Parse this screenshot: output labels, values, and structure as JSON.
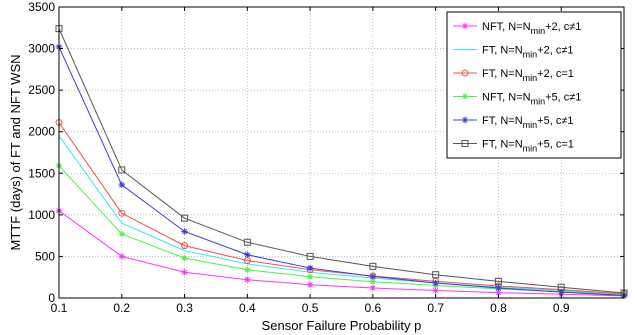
{
  "chart_data": {
    "type": "line",
    "xlabel": "Sensor Failure Probability p",
    "ylabel": "MTTF (days) of FT and NFT WSN",
    "xlim": [
      0.1,
      1.0
    ],
    "ylim": [
      0,
      3500
    ],
    "grid": true,
    "legend_position": "top-right",
    "x": [
      0.1,
      0.2,
      0.3,
      0.4,
      0.5,
      0.6,
      0.7,
      0.8,
      0.9,
      1.0
    ],
    "x_ticks": [
      "0.1",
      "0.2",
      "0.3",
      "0.4",
      "0.5",
      "0.6",
      "0.7",
      "0.8",
      "0.9"
    ],
    "y_ticks": [
      "0",
      "500",
      "1000",
      "1500",
      "2000",
      "2500",
      "3000",
      "3500"
    ],
    "series": [
      {
        "name": "NFT, N=Nmin+2, c≠1",
        "label_parts": [
          "NFT, N=N",
          "min",
          "+2, c≠1"
        ],
        "color": "#ff33ff",
        "marker": "star",
        "values": [
          1050,
          500,
          310,
          220,
          160,
          120,
          90,
          65,
          45,
          25
        ]
      },
      {
        "name": "FT, N=Nmin+2, c≠1",
        "label_parts": [
          "FT, N=N",
          "min",
          "+2, c≠1"
        ],
        "color": "#33e6f2",
        "marker": "none",
        "values": [
          1950,
          900,
          570,
          410,
          310,
          240,
          180,
          130,
          90,
          45
        ]
      },
      {
        "name": "FT, N=Nmin+2, c=1",
        "label_parts": [
          "FT, N=N",
          "min",
          "+2, c=1"
        ],
        "color": "#f0504c",
        "marker": "circle",
        "values": [
          2110,
          1020,
          630,
          450,
          340,
          265,
          200,
          145,
          100,
          50
        ]
      },
      {
        "name": "NFT, N=Nmin+5, c≠1",
        "label_parts": [
          "NFT, N=N",
          "min",
          "+5, c≠1"
        ],
        "color": "#4cf04c",
        "marker": "star",
        "values": [
          1590,
          770,
          480,
          340,
          255,
          195,
          150,
          110,
          75,
          40
        ]
      },
      {
        "name": "FT, N=Nmin+5, c≠1",
        "label_parts": [
          "FT, N=N",
          "min",
          "+5, c≠1"
        ],
        "color": "#3a3ae0",
        "marker": "star",
        "values": [
          3020,
          1360,
          800,
          520,
          360,
          260,
          180,
          120,
          70,
          30
        ]
      },
      {
        "name": "FT, N=Nmin+5, c=1",
        "label_parts": [
          "FT, N=N",
          "min",
          "+5, c=1"
        ],
        "color": "#555555",
        "marker": "square",
        "values": [
          3240,
          1540,
          960,
          670,
          500,
          380,
          280,
          200,
          130,
          60
        ]
      }
    ]
  }
}
